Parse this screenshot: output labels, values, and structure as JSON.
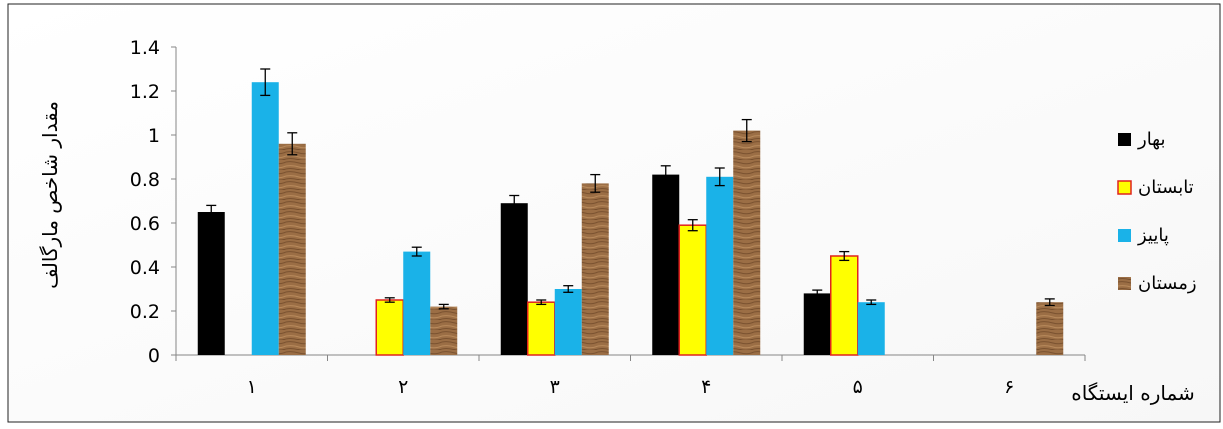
{
  "chart_data": {
    "type": "bar",
    "xlabel": "شماره ایستگاه",
    "ylabel": "مقدار شاخص مارگالف",
    "ylim": [
      0,
      1.4
    ],
    "yticks": [
      "0",
      "0.2",
      "0.4",
      "0.6",
      "0.8",
      "1",
      "1.2",
      "1.4"
    ],
    "categories": [
      "۱",
      "۲",
      "۳",
      "۴",
      "۵",
      "۶"
    ],
    "legend_position": "right",
    "series": [
      {
        "name": "بهار",
        "color": "#000000",
        "values": [
          0.65,
          null,
          0.69,
          0.82,
          0.28,
          null
        ],
        "errors": [
          0.03,
          null,
          0.035,
          0.04,
          0.015,
          null
        ]
      },
      {
        "name": "تابستان",
        "color": "#FFFF00",
        "border": "#E0231E",
        "values": [
          null,
          0.25,
          0.24,
          0.59,
          0.45,
          null
        ],
        "errors": [
          null,
          0.01,
          0.01,
          0.025,
          0.02,
          null
        ]
      },
      {
        "name": "پاییز",
        "color": "#1AB2E8",
        "values": [
          1.24,
          0.47,
          0.3,
          0.81,
          0.24,
          null
        ],
        "errors": [
          0.06,
          0.02,
          0.015,
          0.04,
          0.01,
          null
        ]
      },
      {
        "name": "زمستان",
        "color": "#9B6E45",
        "pattern": "wood",
        "values": [
          0.96,
          0.22,
          0.78,
          1.02,
          null,
          0.24
        ],
        "errors": [
          0.05,
          0.01,
          0.04,
          0.05,
          null,
          0.015
        ]
      }
    ]
  }
}
